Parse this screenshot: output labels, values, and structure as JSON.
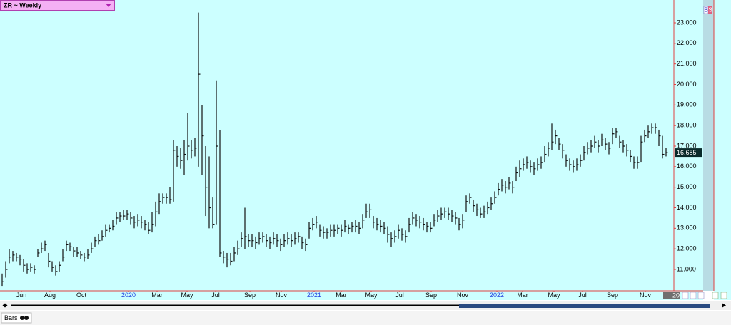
{
  "chart_data": {
    "type": "ohlc",
    "title": "ZR ~ Weekly",
    "color": "#111111",
    "xlim": [
      -0.6,
      188.2
    ],
    "ylim": [
      9.96,
      24.11
    ],
    "yticks": [
      {
        "value": 11,
        "label": "11.000"
      },
      {
        "value": 12,
        "label": "12.000"
      },
      {
        "value": 13,
        "label": "13.000"
      },
      {
        "value": 14,
        "label": "14.000"
      },
      {
        "value": 15,
        "label": "15.000"
      },
      {
        "value": 16,
        "label": "16.000"
      },
      {
        "value": 17,
        "label": "17.000"
      },
      {
        "value": 18,
        "label": "18.000"
      },
      {
        "value": 19,
        "label": "19.000"
      },
      {
        "value": 20,
        "label": "20.000"
      },
      {
        "value": 21,
        "label": "21.000"
      },
      {
        "value": 22,
        "label": "22.000"
      },
      {
        "value": 23,
        "label": "23.000"
      }
    ],
    "xticks": [
      {
        "value": 5.4,
        "label": "Jun"
      },
      {
        "value": 13.4,
        "label": "Aug"
      },
      {
        "value": 22.2,
        "label": "Oct"
      },
      {
        "value": 35.4,
        "label": "2020"
      },
      {
        "value": 43.4,
        "label": "Mar"
      },
      {
        "value": 51.8,
        "label": "May"
      },
      {
        "value": 59.8,
        "label": "Jul"
      },
      {
        "value": 69.4,
        "label": "Sep"
      },
      {
        "value": 78.2,
        "label": "Nov"
      },
      {
        "value": 87.4,
        "label": "2021"
      },
      {
        "value": 95,
        "label": "Mar"
      },
      {
        "value": 103.4,
        "label": "May"
      },
      {
        "value": 111.4,
        "label": "Jul"
      },
      {
        "value": 120.2,
        "label": "Sep"
      },
      {
        "value": 129,
        "label": "Nov"
      },
      {
        "value": 138.6,
        "label": "2022"
      },
      {
        "value": 145.8,
        "label": "Mar"
      },
      {
        "value": 154.6,
        "label": "May"
      },
      {
        "value": 162.6,
        "label": "Jul"
      },
      {
        "value": 171,
        "label": "Sep"
      },
      {
        "value": 180.2,
        "label": "Nov"
      }
    ],
    "high": [
      10.8,
      11.4,
      12.0,
      11.9,
      11.8,
      11.7,
      11.5,
      11.3,
      11.3,
      11.2,
      12.0,
      12.3,
      12.4,
      11.8,
      11.4,
      11.2,
      11.4,
      12.0,
      12.4,
      12.3,
      12.1,
      12.1,
      11.9,
      11.8,
      12.0,
      12.3,
      12.6,
      12.7,
      12.9,
      13.2,
      13.2,
      13.4,
      13.8,
      13.8,
      13.9,
      13.9,
      13.8,
      13.6,
      13.7,
      13.6,
      13.4,
      13.3,
      13.8,
      14.3,
      14.7,
      14.7,
      14.7,
      15.0,
      17.3,
      17.0,
      16.9,
      17.3,
      18.6,
      17.3,
      17.4,
      23.5,
      19.0,
      17.0,
      16.5,
      14.5,
      20.2,
      17.8,
      11.9,
      11.8,
      11.8,
      12.1,
      12.4,
      12.8,
      14.0,
      12.7,
      12.7,
      12.6,
      12.8,
      12.8,
      12.7,
      12.6,
      12.8,
      12.7,
      12.5,
      12.7,
      12.8,
      12.7,
      12.8,
      12.8,
      12.6,
      12.5,
      13.3,
      13.5,
      13.6,
      13.2,
      13.1,
      13.0,
      13.2,
      13.2,
      13.2,
      13.2,
      13.4,
      13.2,
      13.3,
      13.4,
      13.3,
      13.7,
      14.2,
      14.2,
      13.6,
      13.5,
      13.4,
      13.3,
      13.1,
      12.8,
      12.9,
      13.2,
      13.0,
      12.9,
      13.5,
      13.8,
      13.7,
      13.6,
      13.5,
      13.3,
      13.3,
      13.7,
      13.9,
      14.0,
      14.0,
      14.0,
      13.9,
      13.8,
      13.5,
      13.7,
      14.6,
      14.7,
      14.4,
      14.2,
      14.0,
      14.1,
      14.3,
      14.5,
      14.8,
      15.2,
      15.4,
      15.3,
      15.5,
      15.3,
      16.0,
      16.3,
      16.4,
      16.5,
      16.3,
      16.2,
      16.4,
      16.5,
      17.0,
      17.2,
      18.1,
      17.8,
      17.4,
      17.1,
      16.6,
      16.4,
      16.3,
      16.4,
      16.6,
      17.0,
      17.2,
      17.3,
      17.5,
      17.3,
      17.6,
      17.4,
      17.2,
      17.9,
      17.9,
      17.5,
      17.3,
      17.1,
      16.8,
      16.5,
      16.5,
      17.5,
      17.8,
      18.0,
      18.1,
      18.1,
      17.8,
      17.5,
      16.9
    ],
    "low": [
      10.2,
      10.6,
      11.3,
      11.4,
      11.4,
      11.2,
      10.9,
      10.8,
      10.9,
      10.8,
      11.6,
      11.8,
      11.9,
      11.1,
      10.9,
      10.7,
      10.9,
      11.4,
      11.9,
      11.9,
      11.6,
      11.6,
      11.5,
      11.4,
      11.5,
      11.8,
      12.1,
      12.2,
      12.4,
      12.6,
      12.8,
      12.9,
      13.2,
      13.3,
      13.4,
      13.4,
      13.2,
      13.0,
      13.1,
      13.0,
      12.9,
      12.7,
      12.8,
      13.1,
      13.7,
      14.2,
      14.2,
      14.2,
      14.3,
      16.0,
      15.9,
      15.6,
      16.3,
      16.4,
      16.5,
      16.0,
      15.6,
      13.6,
      13.0,
      13.0,
      13.2,
      11.6,
      11.3,
      11.1,
      11.2,
      11.4,
      11.7,
      12.1,
      12.0,
      12.1,
      12.1,
      12.0,
      12.2,
      12.3,
      12.1,
      12.0,
      12.2,
      12.1,
      11.9,
      12.1,
      12.2,
      12.1,
      12.2,
      12.3,
      12.0,
      11.9,
      12.5,
      12.9,
      13.0,
      12.6,
      12.5,
      12.5,
      12.6,
      12.6,
      12.7,
      12.6,
      12.8,
      12.7,
      12.8,
      12.8,
      12.7,
      13.0,
      13.5,
      13.5,
      13.0,
      12.9,
      12.8,
      12.7,
      12.3,
      12.1,
      12.3,
      12.5,
      12.4,
      12.3,
      12.8,
      13.2,
      13.1,
      13.0,
      12.9,
      12.8,
      12.8,
      13.1,
      13.3,
      13.4,
      13.5,
      13.4,
      13.3,
      13.2,
      12.9,
      13.0,
      13.8,
      14.2,
      13.8,
      13.6,
      13.5,
      13.5,
      13.7,
      13.9,
      14.2,
      14.6,
      14.8,
      14.7,
      14.9,
      14.7,
      15.3,
      15.5,
      15.8,
      15.9,
      15.7,
      15.6,
      15.8,
      15.9,
      16.2,
      16.5,
      16.8,
      17.1,
      16.8,
      16.4,
      16.0,
      15.8,
      15.7,
      15.8,
      16.0,
      16.3,
      16.6,
      16.7,
      16.9,
      16.7,
      17.0,
      16.8,
      16.6,
      17.1,
      17.4,
      16.9,
      16.7,
      16.5,
      16.2,
      15.9,
      15.9,
      16.2,
      17.2,
      17.4,
      17.6,
      17.6,
      17.0,
      16.4,
      16.5
    ],
    "close": [
      10.4,
      11.0,
      11.6,
      11.7,
      11.6,
      11.5,
      11.2,
      11.0,
      11.1,
      11.0,
      11.8,
      12.0,
      12.2,
      11.4,
      11.1,
      10.9,
      11.2,
      11.6,
      12.2,
      12.1,
      11.9,
      11.8,
      11.7,
      11.6,
      11.7,
      12.0,
      12.4,
      12.4,
      12.6,
      12.9,
      13.0,
      13.1,
      13.5,
      13.6,
      13.6,
      13.7,
      13.5,
      13.3,
      13.4,
      13.3,
      13.2,
      12.9,
      13.2,
      13.8,
      14.3,
      14.5,
      14.5,
      14.4,
      16.8,
      16.5,
      16.3,
      16.6,
      17.0,
      16.8,
      16.9,
      20.5,
      17.5,
      15.0,
      14.0,
      13.2,
      17.0,
      11.8,
      11.6,
      11.5,
      11.4,
      11.8,
      12.0,
      12.5,
      12.6,
      12.4,
      12.4,
      12.3,
      12.5,
      12.6,
      12.4,
      12.3,
      12.5,
      12.4,
      12.2,
      12.4,
      12.5,
      12.4,
      12.5,
      12.6,
      12.3,
      12.2,
      13.0,
      13.2,
      13.3,
      12.9,
      12.8,
      12.8,
      12.9,
      12.9,
      13.0,
      12.9,
      13.1,
      13.0,
      13.1,
      13.1,
      13.0,
      13.4,
      13.8,
      13.9,
      13.3,
      13.2,
      13.1,
      13.0,
      12.7,
      12.5,
      12.6,
      12.9,
      12.7,
      12.6,
      13.2,
      13.5,
      13.4,
      13.3,
      13.2,
      13.1,
      13.0,
      13.4,
      13.6,
      13.7,
      13.8,
      13.7,
      13.6,
      13.5,
      13.2,
      13.4,
      14.3,
      14.5,
      14.1,
      13.9,
      13.7,
      13.8,
      14.0,
      14.2,
      14.5,
      14.9,
      15.1,
      15.0,
      15.2,
      15.0,
      15.7,
      15.9,
      16.1,
      16.2,
      16.0,
      15.9,
      16.1,
      16.2,
      16.6,
      16.9,
      17.2,
      17.5,
      17.1,
      16.8,
      16.3,
      16.1,
      16.0,
      16.1,
      16.3,
      16.7,
      16.9,
      17.0,
      17.2,
      17.0,
      17.3,
      17.1,
      16.9,
      17.6,
      17.7,
      17.2,
      17.0,
      16.8,
      16.5,
      16.2,
      16.2,
      17.2,
      17.5,
      17.7,
      17.9,
      17.9,
      17.5,
      16.6,
      16.685
    ]
  },
  "ui": {
    "trade_buttons": [
      "B",
      "S"
    ],
    "corner_label": "20",
    "bottom_label": "Bars"
  }
}
